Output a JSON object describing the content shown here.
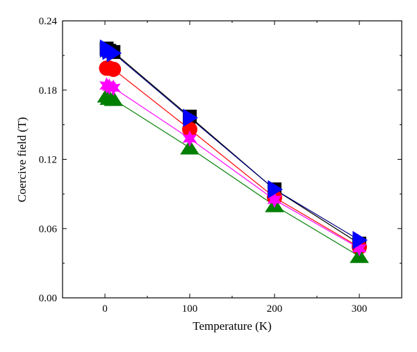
{
  "chart_data": {
    "type": "scatter",
    "xlabel": "Temperature (K)",
    "ylabel": "Coercive field (T)",
    "xlim": [
      -50,
      350
    ],
    "ylim": [
      0,
      0.24
    ],
    "x_ticks": [
      0,
      100,
      200,
      300
    ],
    "y_ticks": [
      0.0,
      0.06,
      0.12,
      0.18,
      0.24
    ],
    "x_tick_labels": [
      "0",
      "100",
      "200",
      "300"
    ],
    "y_tick_labels": [
      "0.00",
      "0.06",
      "0.12",
      "0.18",
      "0.24"
    ],
    "grid": false,
    "series": [
      {
        "marker": "square",
        "color": "#000000",
        "line_color": "#000000",
        "points": [
          [
            2,
            0.216
          ],
          [
            5,
            0.214
          ],
          [
            10,
            0.213
          ],
          [
            100,
            0.157
          ],
          [
            200,
            0.094
          ],
          [
            300,
            0.047
          ]
        ]
      },
      {
        "marker": "circle",
        "color": "#ff0000",
        "line_color": "#ff0000",
        "points": [
          [
            2,
            0.199
          ],
          [
            5,
            0.199
          ],
          [
            10,
            0.198
          ],
          [
            100,
            0.146
          ],
          [
            200,
            0.087
          ],
          [
            300,
            0.044
          ]
        ]
      },
      {
        "marker": "triangle-up",
        "color": "#007f00",
        "line_color": "#007f00",
        "points": [
          [
            2,
            0.175
          ],
          [
            5,
            0.173
          ],
          [
            10,
            0.172
          ],
          [
            100,
            0.13
          ],
          [
            200,
            0.08
          ],
          [
            300,
            0.036
          ]
        ]
      },
      {
        "marker": "star",
        "color": "#ff00ff",
        "line_color": "#ff00ff",
        "points": [
          [
            2,
            0.184
          ],
          [
            5,
            0.183
          ],
          [
            10,
            0.182
          ],
          [
            100,
            0.138
          ],
          [
            200,
            0.085
          ],
          [
            300,
            0.043
          ]
        ]
      },
      {
        "marker": "triangle-right",
        "color": "#0000ff",
        "line_color": "#000080",
        "points": [
          [
            2,
            0.216
          ],
          [
            5,
            0.214
          ],
          [
            10,
            0.212
          ],
          [
            100,
            0.156
          ],
          [
            200,
            0.094
          ],
          [
            300,
            0.05
          ]
        ]
      }
    ]
  }
}
